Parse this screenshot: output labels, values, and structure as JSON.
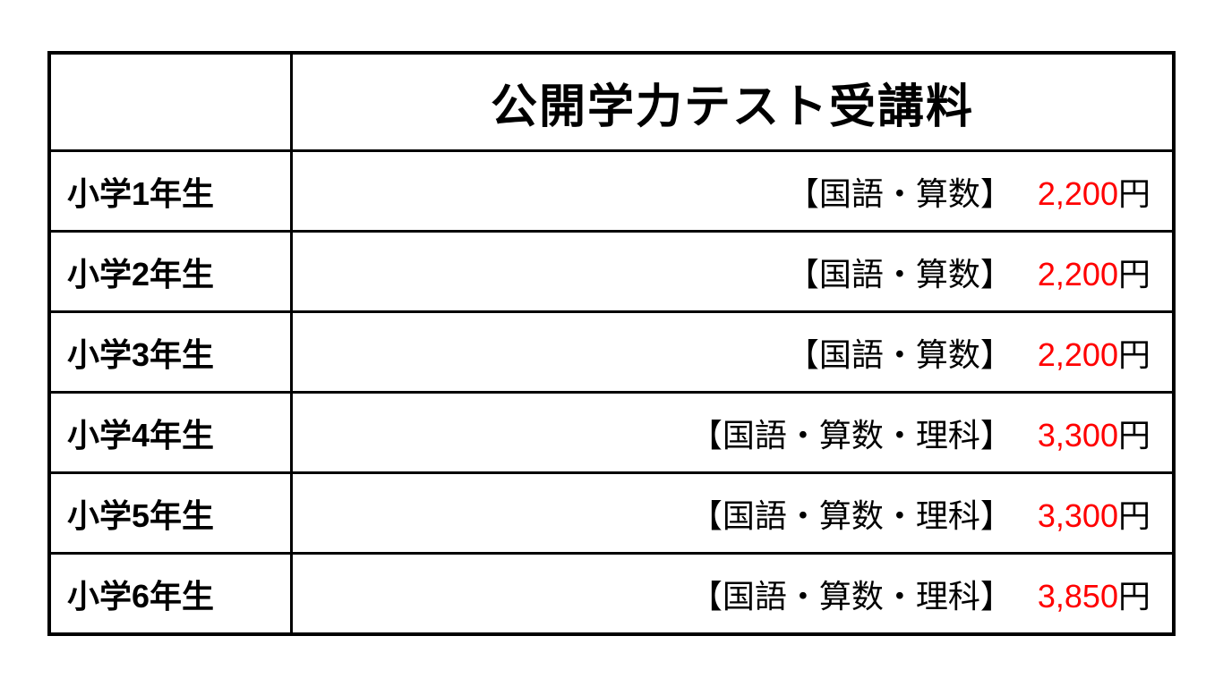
{
  "table": {
    "header_title": "公開学力テスト受講料",
    "border_color": "#000000",
    "background_color": "#ffffff",
    "price_color": "#ff0000",
    "text_color": "#000000",
    "header_fontsize": 52,
    "cell_fontsize": 36,
    "currency_unit": "円",
    "rows": [
      {
        "grade": "小学1年生",
        "subjects": "【国語・算数】",
        "price": "2,200"
      },
      {
        "grade": "小学2年生",
        "subjects": "【国語・算数】",
        "price": "2,200"
      },
      {
        "grade": "小学3年生",
        "subjects": "【国語・算数】",
        "price": "2,200"
      },
      {
        "grade": "小学4年生",
        "subjects": "【国語・算数・理科】",
        "price": "3,300"
      },
      {
        "grade": "小学5年生",
        "subjects": "【国語・算数・理科】",
        "price": "3,300"
      },
      {
        "grade": "小学6年生",
        "subjects": "【国語・算数・理科】",
        "price": "3,850"
      }
    ]
  }
}
